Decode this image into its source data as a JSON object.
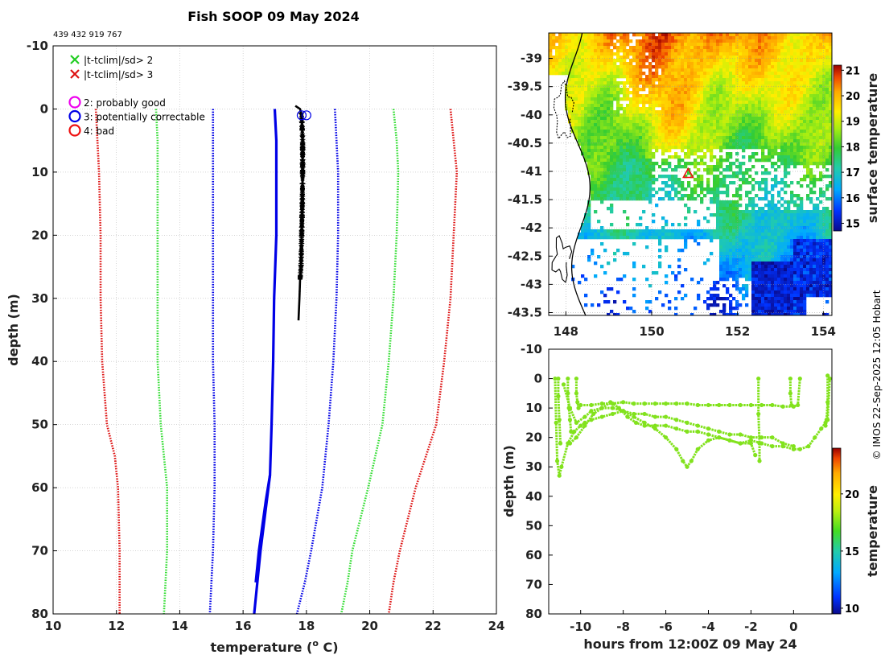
{
  "page": {
    "title": "Fish SOOP 09 May 2024",
    "id_line": "439 432 919 767",
    "credit": "© IMOS 22-Sep-2025 12:05 Hobart"
  },
  "colors": {
    "black": "#000000",
    "blue": "#0000e6",
    "green": "#33dd33",
    "red": "#dd1111",
    "magenta": "#ee00ee",
    "lime": "#88e81c",
    "grid": "#bbbbbb"
  },
  "legend": {
    "flags": [
      {
        "label": "|t-tclim|/sd> 2",
        "color": "#22cc22"
      },
      {
        "label": "|t-tclim|/sd> 3",
        "color": "#dd1111"
      }
    ],
    "quality": [
      {
        "label": "2: probably good",
        "color": "#ee00ee"
      },
      {
        "label": "3: potentially correctable",
        "color": "#0000e6"
      },
      {
        "label": "4: bad",
        "color": "#ee1111"
      }
    ]
  },
  "chart_data": [
    {
      "type": "line",
      "name": "profile",
      "xlabel": "temperature (",
      "xlabel_deg": "o",
      "xlabel_tail": " C)",
      "ylabel": "depth (m)",
      "xlim": [
        10,
        24
      ],
      "ylim": [
        -10,
        80
      ],
      "xticks": [
        10,
        12,
        14,
        16,
        18,
        20,
        22,
        24
      ],
      "yticks": [
        -10,
        0,
        10,
        20,
        30,
        40,
        50,
        60,
        70,
        80
      ],
      "series": [
        {
          "name": "climatology mean",
          "style": "solid-blue",
          "depth": [
            0,
            5,
            10,
            20,
            30,
            40,
            50,
            58,
            62,
            70,
            75,
            80
          ],
          "temp": [
            17.0,
            17.05,
            17.05,
            17.05,
            16.98,
            16.95,
            16.9,
            16.85,
            16.75,
            16.55,
            16.45,
            16.35
          ]
        },
        {
          "name": "climatology mean branch",
          "style": "solid-blue",
          "depth": [
            58,
            62,
            70,
            75
          ],
          "temp": [
            16.85,
            16.72,
            16.5,
            16.4
          ]
        },
        {
          "name": "observed profile",
          "style": "solid-black",
          "depth": [
            -0.5,
            0,
            1,
            5,
            10,
            15,
            20,
            25,
            27,
            30,
            33.5
          ],
          "temp": [
            17.65,
            17.8,
            17.85,
            17.88,
            17.88,
            17.87,
            17.85,
            17.83,
            17.8,
            17.78,
            17.75
          ]
        },
        {
          "name": "+1 sd",
          "style": "dotted-blue",
          "depth": [
            0,
            5,
            10,
            20,
            30,
            40,
            50,
            60,
            70,
            75,
            80
          ],
          "temp": [
            18.9,
            18.95,
            19.0,
            19.0,
            18.95,
            18.85,
            18.7,
            18.5,
            18.15,
            17.95,
            17.7
          ]
        },
        {
          "name": "-1 sd",
          "style": "dotted-blue",
          "depth": [
            0,
            5,
            10,
            20,
            30,
            40,
            50,
            60,
            70,
            75,
            80
          ],
          "temp": [
            15.05,
            15.05,
            15.05,
            15.05,
            15.05,
            15.05,
            15.1,
            15.1,
            15.05,
            15.0,
            14.95
          ]
        },
        {
          "name": "+2 sd",
          "style": "dotted-green",
          "depth": [
            0,
            5,
            10,
            20,
            30,
            40,
            50,
            60,
            70,
            75,
            80
          ],
          "temp": [
            20.75,
            20.85,
            20.9,
            20.85,
            20.75,
            20.6,
            20.4,
            19.95,
            19.45,
            19.3,
            19.1
          ]
        },
        {
          "name": "-2 sd",
          "style": "dotted-green",
          "depth": [
            0,
            5,
            10,
            20,
            30,
            40,
            50,
            60,
            70,
            75,
            80
          ],
          "temp": [
            13.25,
            13.3,
            13.3,
            13.3,
            13.3,
            13.3,
            13.4,
            13.6,
            13.6,
            13.55,
            13.5
          ]
        },
        {
          "name": "+3 sd",
          "style": "dotted-red",
          "depth": [
            0,
            5,
            10,
            20,
            30,
            40,
            50,
            60,
            70,
            75,
            80
          ],
          "temp": [
            22.55,
            22.65,
            22.75,
            22.65,
            22.55,
            22.35,
            22.1,
            21.45,
            20.95,
            20.75,
            20.6
          ]
        },
        {
          "name": "-3 sd",
          "style": "dotted-red",
          "depth": [
            0,
            5,
            10,
            20,
            30,
            40,
            50,
            55,
            60,
            70,
            75,
            80
          ],
          "temp": [
            11.35,
            11.4,
            11.45,
            11.5,
            11.5,
            11.55,
            11.7,
            11.95,
            12.05,
            12.1,
            12.1,
            12.1
          ]
        }
      ],
      "markers": [
        {
          "name": "quality 3 circle",
          "temp": 17.85,
          "depth": 1,
          "color": "#0000e6"
        },
        {
          "name": "quality 3 circle",
          "temp": 18.0,
          "depth": 1,
          "color": "#0000e6"
        }
      ]
    },
    {
      "type": "heatmap",
      "name": "surface temperature map",
      "xlim": [
        147.6,
        154.2
      ],
      "ylim": [
        -43.55,
        -38.55
      ],
      "xticks": [
        148,
        150,
        152,
        154
      ],
      "yticks": [
        -39,
        -39.5,
        -40,
        -40.5,
        -41,
        -41.5,
        -42,
        -42.5,
        -43,
        -43.5
      ],
      "colorbar": {
        "label": "surface temperature",
        "min": 14.7,
        "max": 21.2,
        "ticks": [
          15,
          16,
          17,
          18,
          19,
          20,
          21
        ]
      },
      "marker": {
        "lon": 150.85,
        "lat": -41.05,
        "color": "#ee1111"
      }
    },
    {
      "type": "scatter",
      "name": "depth vs time",
      "xlabel": "hours from 12:00Z 09 May 24",
      "ylabel": "depth (m)",
      "xlim": [
        -11.5,
        1.8
      ],
      "ylim": [
        -10,
        80
      ],
      "xticks": [
        -10,
        -8,
        -6,
        -4,
        -2,
        0
      ],
      "yticks": [
        -10,
        0,
        10,
        20,
        30,
        40,
        50,
        60,
        70,
        80
      ],
      "colorbar": {
        "label": "temperature",
        "min": 9.5,
        "max": 24,
        "ticks": [
          10,
          15,
          20
        ]
      },
      "point_temperature": 17.9,
      "series": [
        {
          "name": "track 1",
          "x": [
            -11.2,
            -11.15,
            -11.1,
            -11.0,
            -10.9,
            -10.6,
            -10.3,
            -10.0,
            -9.8,
            -9.5,
            -9.0,
            -8.5,
            -8.0,
            -7.5,
            -7.0,
            -6.5,
            -6.0,
            -5.5,
            -5.2,
            -5.0,
            -4.8,
            -4.5,
            -4.0,
            -3.5,
            -3.0,
            -2.5,
            -2.0,
            -1.5,
            -1.0,
            -0.5,
            0.0,
            0.3,
            0.7,
            1.0,
            1.3,
            1.5,
            1.6,
            1.7
          ],
          "y": [
            0,
            15,
            28,
            33,
            30,
            22,
            18,
            16,
            15,
            14,
            13,
            12,
            11,
            13,
            15,
            17,
            20,
            24,
            28,
            30,
            28,
            24,
            21,
            20,
            21,
            22,
            21,
            22,
            23,
            23,
            24,
            24,
            23,
            20,
            17,
            15,
            14,
            0
          ]
        },
        {
          "name": "track 2",
          "x": [
            -10.0,
            -9.5,
            -9.0,
            -8.5,
            -8.0,
            -7.5,
            -7.0,
            -6.5,
            -6.0,
            -5.5,
            -5.0,
            -4.5,
            -4.0,
            -3.5,
            -3.0,
            -2.5,
            -2.0,
            -1.5,
            -1.0,
            -0.5,
            0.0,
            0.2,
            0.3
          ],
          "y": [
            9,
            9,
            8.5,
            8.5,
            8,
            8.5,
            8.5,
            8.5,
            8.5,
            8.5,
            8.5,
            9,
            9,
            9,
            9,
            9,
            9,
            9,
            9,
            9.5,
            9.5,
            9,
            0
          ]
        },
        {
          "name": "track 3",
          "x": [
            -10.5,
            -10.2,
            -9.8,
            -9.4,
            -9.0,
            -8.6,
            -8.2,
            -7.8,
            -7.4,
            -7.0,
            -6.5,
            -6.0,
            -5.5,
            -5.0,
            -4.5,
            -4.0,
            -3.5,
            -3.0,
            -2.5,
            -2.0,
            -1.8
          ],
          "y": [
            22,
            20,
            16,
            12,
            10,
            8,
            10,
            13,
            15,
            16,
            16,
            16,
            17,
            18,
            18,
            19,
            20,
            21,
            22,
            22,
            26
          ]
        },
        {
          "name": "track 4",
          "x": [
            -10.8,
            -10.5,
            -10.2,
            -9.8,
            -9.5,
            -9.0,
            -8.5,
            -8.0,
            -7.5,
            -7.0,
            -6.5,
            -6.0,
            -5.5,
            -5.0,
            -4.5,
            -4.0,
            -3.5,
            -3.0,
            -2.5,
            -2.0,
            -1.5,
            -1.0,
            -0.5,
            0.0
          ],
          "y": [
            2,
            10,
            15,
            13,
            11,
            10,
            10,
            11,
            12,
            12,
            13,
            13,
            14,
            15,
            16,
            17,
            18,
            19,
            19,
            20,
            20,
            20,
            22,
            23
          ]
        },
        {
          "name": "dive a",
          "x": [
            -11.05,
            -11.05,
            -11.0,
            -10.95
          ],
          "y": [
            0,
            6,
            14,
            22
          ]
        },
        {
          "name": "dive b",
          "x": [
            -10.6,
            -10.6,
            -10.55,
            -10.5,
            -10.45
          ],
          "y": [
            0,
            5,
            10,
            14,
            18
          ]
        },
        {
          "name": "dive c",
          "x": [
            -10.2,
            -10.2,
            -10.15,
            -10.1
          ],
          "y": [
            0,
            5,
            8,
            10
          ]
        },
        {
          "name": "dive d",
          "x": [
            -1.65,
            -1.65,
            -1.6,
            -1.6
          ],
          "y": [
            0,
            12,
            22,
            28
          ]
        },
        {
          "name": "dive e",
          "x": [
            -0.15,
            -0.15,
            -0.1
          ],
          "y": [
            0,
            5,
            9
          ]
        },
        {
          "name": "dive f",
          "x": [
            1.6,
            1.6,
            1.55,
            1.5
          ],
          "y": [
            -1,
            8,
            14,
            16
          ]
        }
      ]
    }
  ]
}
